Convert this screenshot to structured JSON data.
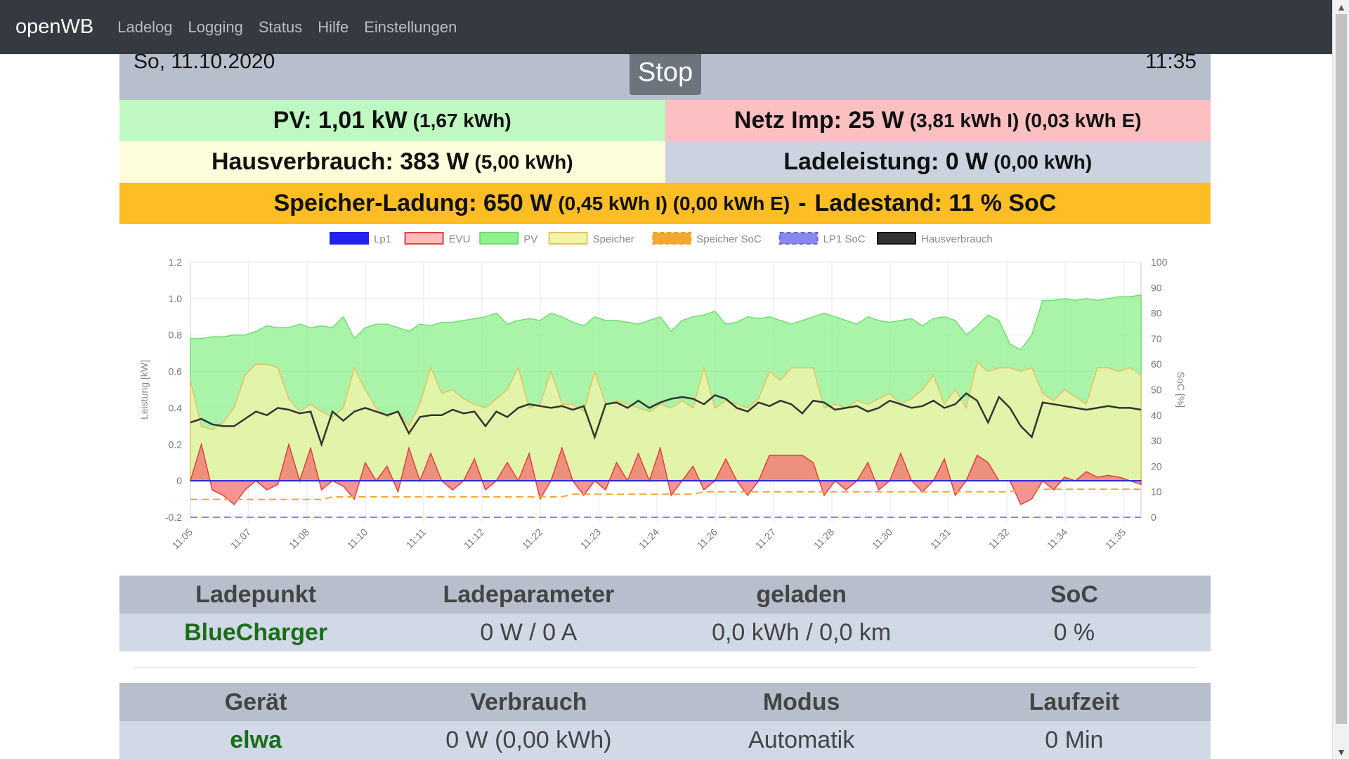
{
  "nav": {
    "brand": "openWB",
    "links": [
      "Ladelog",
      "Logging",
      "Status",
      "Hilfe",
      "Einstellungen"
    ]
  },
  "header": {
    "date": "So, 11.10.2020",
    "time": "11:35",
    "stop_label": "Stop"
  },
  "stats": {
    "pv_main": "PV: 1,01 kW",
    "pv_sub": "(1,67 kWh)",
    "netz_main": "Netz Imp: 25 W",
    "netz_sub": "(3,81 kWh I) (0,03 kWh E)",
    "haus_main": "Hausverbrauch: 383 W",
    "haus_sub": "(5,00 kWh)",
    "lade_main": "Ladeleistung: 0 W",
    "lade_sub": "(0,00 kWh)",
    "speicher_main": "Speicher-Ladung: 650 W",
    "speicher_sub": "(0,45 kWh I) (0,00 kWh E)",
    "speicher_sep": "-",
    "soc_main": "Ladestand: 11 % SoC"
  },
  "colors": {
    "lp1": "#2222ee",
    "evu": "#f07070",
    "pv": "#8ef08e",
    "speicher": "#f4f4a8",
    "speicher_soc": "#f4a830",
    "lp1_soc": "#8888ee",
    "hausverbrauch": "#333333"
  },
  "chart_data": {
    "type": "line",
    "legend": [
      "Lp1",
      "EVU",
      "PV",
      "Speicher",
      "Speicher SoC",
      "LP1 SoC",
      "Hausverbrauch"
    ],
    "legend_position": "top",
    "ylabel_left": "Leistung [kW]",
    "ylabel_right": "SoC [%]",
    "ylim_left": [
      -0.2,
      1.2
    ],
    "ylim_right": [
      0,
      100
    ],
    "yticks_left": [
      "1.2",
      "1.0",
      "0.8",
      "0.6",
      "0.4",
      "0.2",
      "0",
      "-0.2"
    ],
    "yticks_right": [
      "100",
      "90",
      "80",
      "70",
      "60",
      "50",
      "40",
      "30",
      "20",
      "10",
      "0"
    ],
    "x_ticks": [
      "11:05",
      "11:07",
      "11:08",
      "11:10",
      "11:11",
      "11:12",
      "11:22",
      "11:23",
      "11:24",
      "11:26",
      "11:27",
      "11:28",
      "11:30",
      "11:31",
      "11:32",
      "11:34",
      "11:35"
    ],
    "grid": true,
    "series": [
      {
        "name": "PV",
        "values": [
          0.78,
          0.78,
          0.79,
          0.79,
          0.8,
          0.8,
          0.82,
          0.85,
          0.84,
          0.84,
          0.86,
          0.84,
          0.85,
          0.84,
          0.9,
          0.78,
          0.84,
          0.86,
          0.86,
          0.84,
          0.82,
          0.86,
          0.85,
          0.87,
          0.87,
          0.88,
          0.89,
          0.9,
          0.92,
          0.86,
          0.88,
          0.89,
          0.88,
          0.92,
          0.9,
          0.87,
          0.85,
          0.9,
          0.88,
          0.88,
          0.87,
          0.86,
          0.88,
          0.9,
          0.82,
          0.88,
          0.9,
          0.91,
          0.93,
          0.86,
          0.87,
          0.9,
          0.89,
          0.9,
          0.88,
          0.86,
          0.88,
          0.9,
          0.92,
          0.9,
          0.88,
          0.86,
          0.9,
          0.88,
          0.87,
          0.88,
          0.89,
          0.85,
          0.89,
          0.9,
          0.88,
          0.8,
          0.85,
          0.91,
          0.88,
          0.75,
          0.72,
          0.8,
          0.99,
          0.99,
          1.0,
          0.99,
          1.0,
          0.99,
          1.0,
          1.01,
          1.01,
          1.02
        ]
      },
      {
        "name": "Hausverbrauch",
        "values": [
          0.32,
          0.34,
          0.31,
          0.3,
          0.3,
          0.34,
          0.38,
          0.36,
          0.4,
          0.39,
          0.37,
          0.38,
          0.2,
          0.38,
          0.33,
          0.38,
          0.4,
          0.38,
          0.36,
          0.38,
          0.26,
          0.35,
          0.36,
          0.36,
          0.39,
          0.37,
          0.38,
          0.3,
          0.38,
          0.35,
          0.4,
          0.42,
          0.41,
          0.4,
          0.41,
          0.39,
          0.41,
          0.24,
          0.42,
          0.43,
          0.4,
          0.44,
          0.4,
          0.43,
          0.45,
          0.46,
          0.45,
          0.42,
          0.47,
          0.45,
          0.4,
          0.38,
          0.43,
          0.41,
          0.44,
          0.42,
          0.37,
          0.44,
          0.43,
          0.39,
          0.4,
          0.41,
          0.38,
          0.4,
          0.44,
          0.42,
          0.4,
          0.41,
          0.44,
          0.4,
          0.42,
          0.48,
          0.44,
          0.32,
          0.46,
          0.4,
          0.3,
          0.24,
          0.43,
          0.42,
          0.41,
          0.4,
          0.39,
          0.4,
          0.41,
          0.4,
          0.4,
          0.39
        ]
      },
      {
        "name": "Speicher",
        "values": [
          0.55,
          0.3,
          0.28,
          0.32,
          0.4,
          0.58,
          0.64,
          0.64,
          0.62,
          0.45,
          0.38,
          0.42,
          0.38,
          0.35,
          0.4,
          0.62,
          0.5,
          0.4,
          0.35,
          0.38,
          0.3,
          0.42,
          0.62,
          0.48,
          0.5,
          0.45,
          0.42,
          0.4,
          0.45,
          0.5,
          0.62,
          0.4,
          0.42,
          0.6,
          0.42,
          0.42,
          0.38,
          0.6,
          0.42,
          0.44,
          0.42,
          0.4,
          0.38,
          0.42,
          0.4,
          0.44,
          0.4,
          0.62,
          0.4,
          0.44,
          0.42,
          0.4,
          0.45,
          0.6,
          0.55,
          0.62,
          0.62,
          0.62,
          0.4,
          0.42,
          0.4,
          0.44,
          0.42,
          0.45,
          0.48,
          0.42,
          0.45,
          0.5,
          0.58,
          0.42,
          0.5,
          0.4,
          0.65,
          0.6,
          0.62,
          0.62,
          0.6,
          0.62,
          0.48,
          0.44,
          0.5,
          0.46,
          0.42,
          0.62,
          0.62,
          0.6,
          0.62,
          0.58
        ]
      },
      {
        "name": "EVU",
        "values": [
          0.0,
          0.2,
          -0.05,
          -0.08,
          -0.13,
          -0.05,
          0.0,
          -0.05,
          -0.02,
          0.2,
          0.0,
          0.18,
          -0.05,
          0.0,
          -0.03,
          -0.1,
          0.1,
          0.0,
          0.08,
          -0.06,
          0.18,
          0.0,
          0.15,
          0.0,
          -0.05,
          0.0,
          0.12,
          -0.05,
          0.0,
          0.1,
          0.0,
          0.15,
          -0.1,
          0.0,
          0.18,
          0.0,
          -0.08,
          0.0,
          -0.05,
          0.1,
          0.0,
          0.15,
          0.0,
          0.18,
          -0.08,
          0.0,
          0.08,
          -0.05,
          0.0,
          0.12,
          0.0,
          -0.08,
          0.0,
          0.14,
          0.14,
          0.14,
          0.14,
          0.1,
          -0.08,
          0.0,
          -0.05,
          0.0,
          0.1,
          -0.05,
          0.0,
          0.15,
          0.0,
          -0.06,
          0.0,
          0.12,
          -0.08,
          0.0,
          0.14,
          0.1,
          0.0,
          0.0,
          -0.13,
          -0.1,
          0.0,
          -0.05,
          0.02,
          0.0,
          0.05,
          0.02,
          0.03,
          0.02,
          0.0,
          -0.02
        ]
      },
      {
        "name": "Lp1",
        "values": [
          0,
          0,
          0,
          0,
          0,
          0,
          0,
          0,
          0,
          0,
          0,
          0,
          0,
          0,
          0,
          0,
          0,
          0,
          0,
          0,
          0,
          0,
          0,
          0,
          0,
          0,
          0,
          0,
          0,
          0,
          0,
          0,
          0,
          0,
          0,
          0,
          0,
          0,
          0,
          0,
          0,
          0,
          0,
          0,
          0,
          0,
          0,
          0,
          0,
          0,
          0,
          0,
          0,
          0,
          0,
          0,
          0,
          0,
          0,
          0,
          0,
          0,
          0,
          0,
          0,
          0,
          0,
          0,
          0,
          0,
          0,
          0,
          0,
          0,
          0,
          0,
          0,
          0,
          0,
          0,
          0,
          0,
          0,
          0,
          0,
          0,
          0,
          0
        ]
      },
      {
        "name": "Speicher SoC",
        "axis": "right",
        "values": [
          7,
          7,
          7,
          7,
          7,
          7,
          7,
          7,
          7,
          7,
          7,
          7,
          7,
          8,
          8,
          8,
          8,
          8,
          8,
          8,
          8,
          8,
          8,
          8,
          8,
          8,
          8,
          8,
          8,
          8,
          8,
          8,
          8,
          8,
          8,
          9,
          9,
          9,
          9,
          9,
          9,
          9,
          9,
          9,
          9,
          9,
          9,
          10,
          10,
          10,
          10,
          10,
          10,
          10,
          10,
          10,
          10,
          10,
          10,
          10,
          10,
          10,
          10,
          10,
          10,
          10,
          10,
          10,
          10,
          10,
          10,
          10,
          10,
          10,
          10,
          10,
          11,
          11,
          11,
          11,
          11,
          11,
          11,
          11,
          11,
          11,
          11,
          11
        ]
      },
      {
        "name": "LP1 SoC",
        "axis": "right",
        "values": [
          0,
          0,
          0,
          0,
          0,
          0,
          0,
          0,
          0,
          0,
          0,
          0,
          0,
          0,
          0,
          0,
          0,
          0,
          0,
          0,
          0,
          0,
          0,
          0,
          0,
          0,
          0,
          0,
          0,
          0,
          0,
          0,
          0,
          0,
          0,
          0,
          0,
          0,
          0,
          0,
          0,
          0,
          0,
          0,
          0,
          0,
          0,
          0,
          0,
          0,
          0,
          0,
          0,
          0,
          0,
          0,
          0,
          0,
          0,
          0,
          0,
          0,
          0,
          0,
          0,
          0,
          0,
          0,
          0,
          0,
          0,
          0,
          0,
          0,
          0,
          0,
          0,
          0,
          0,
          0,
          0,
          0,
          0,
          0,
          0,
          0,
          0,
          0
        ]
      }
    ]
  },
  "ladepunkt_table": {
    "headers": [
      "Ladepunkt",
      "Ladeparameter",
      "geladen",
      "SoC"
    ],
    "row": [
      "BlueCharger",
      "0 W / 0 A",
      "0,0 kWh / 0,0 km",
      "0 %"
    ]
  },
  "geraet_table": {
    "headers": [
      "Gerät",
      "Verbrauch",
      "Modus",
      "Laufzeit"
    ],
    "row": [
      "elwa",
      "0 W (0,00 kWh)",
      "Automatik",
      "0 Min"
    ]
  }
}
